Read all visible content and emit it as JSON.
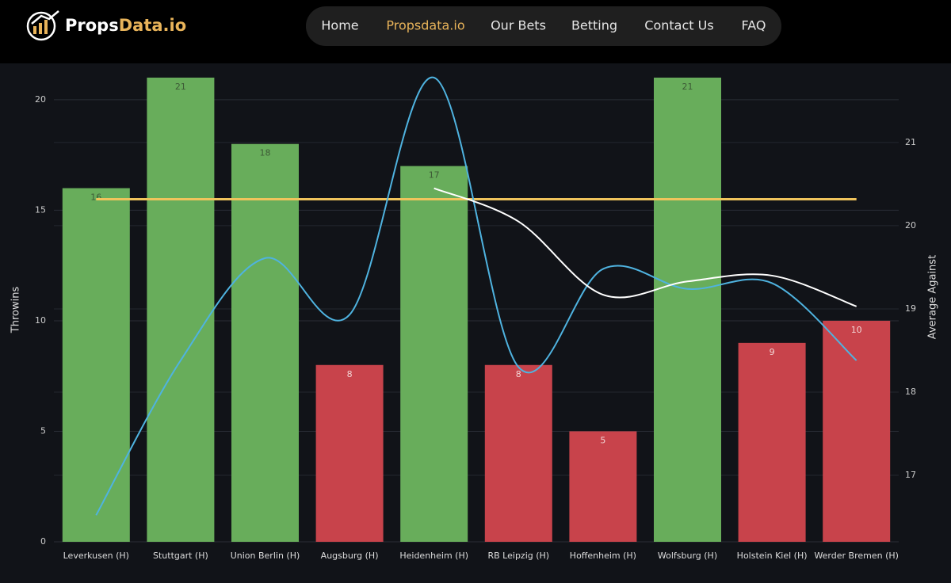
{
  "header": {
    "logo": [
      "Props",
      "Data.io"
    ],
    "nav": [
      "Home",
      "Propsdata.io",
      "Our Bets",
      "Betting",
      "Contact Us",
      "FAQ"
    ],
    "active": 1
  },
  "chart_data": {
    "type": "bar",
    "categories": [
      "Leverkusen (H)",
      "Stuttgart (H)",
      "Union Berlin (H)",
      "Augsburg (H)",
      "Heidenheim (H)",
      "RB Leipzig (H)",
      "Hoffenheim (H)",
      "Wolfsburg (H)",
      "Holstein Kiel (H)",
      "Werder Bremen (H)"
    ],
    "series": [
      {
        "type": "bar",
        "values": [
          16,
          21,
          18,
          8,
          17,
          8,
          5,
          21,
          9,
          10
        ],
        "colors": [
          "#68ad5b",
          "#68ad5b",
          "#68ad5b",
          "#c8434b",
          "#68ad5b",
          "#c8434b",
          "#c8434b",
          "#68ad5b",
          "#c8434b",
          "#c8434b"
        ]
      },
      {
        "type": "line",
        "color": "#f0c45c",
        "smooth": false,
        "values": [
          15.5,
          15.5,
          15.5,
          15.5,
          15.5,
          15.5,
          15.5,
          15.5,
          15.5,
          15.5
        ]
      },
      {
        "type": "line",
        "color": "#4fb3e0",
        "smooth": true,
        "axis": "y2",
        "values": [
          16.52,
          18.38,
          19.61,
          18.93,
          21.78,
          18.3,
          19.48,
          19.24,
          19.31,
          18.38
        ]
      },
      {
        "type": "line",
        "color": "#ffffff",
        "smooth": true,
        "axis": "y2",
        "values": [
          null,
          null,
          null,
          null,
          20.45,
          20.05,
          19.17,
          19.33,
          19.4,
          19.03
        ]
      }
    ],
    "ylabel": "Throwins",
    "y2label": "Average Against",
    "ylim": [
      0,
      21
    ],
    "yticks": [
      0,
      5,
      10,
      15,
      20
    ],
    "y2lim": [
      16.2,
      21.78
    ],
    "y2ticks": [
      17,
      18,
      19,
      20,
      21
    ],
    "grid": true
  }
}
